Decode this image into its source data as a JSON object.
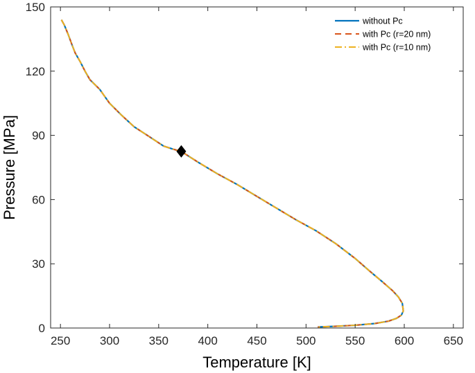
{
  "chart_data": {
    "type": "line",
    "xlabel": "Temperature [K]",
    "ylabel": "Pressure [MPa]",
    "xlim": [
      240,
      660
    ],
    "ylim": [
      0,
      150
    ],
    "xticks": [
      250,
      300,
      350,
      400,
      450,
      500,
      550,
      600,
      650
    ],
    "yticks": [
      0,
      30,
      60,
      90,
      120,
      150
    ],
    "grid": false,
    "legend_position": "top-right",
    "series": [
      {
        "name": "without Pc",
        "color": "#0072BD",
        "style": "solid",
        "x": [
          251,
          254,
          258,
          262,
          265,
          270,
          275,
          280,
          290,
          300,
          312,
          325,
          340,
          355,
          365,
          373,
          390,
          410,
          430,
          450,
          470,
          490,
          510,
          530,
          550,
          565,
          578,
          588,
          594,
          598,
          599,
          597,
          592,
          584,
          570,
          550,
          530,
          512
        ],
        "y": [
          144,
          141.5,
          137,
          132,
          128.5,
          124.5,
          120,
          116,
          111.5,
          105,
          99.5,
          94,
          89.5,
          85,
          83.5,
          82.5,
          77.5,
          72,
          67,
          61.5,
          56,
          50.5,
          45.5,
          39.5,
          32.5,
          26.5,
          21.5,
          17.5,
          14.5,
          11.5,
          8,
          6,
          4.5,
          3.2,
          2.1,
          1.3,
          0.8,
          0.5
        ]
      },
      {
        "name": "with Pc (r=20 nm)",
        "color": "#D95319",
        "style": "dashed",
        "x": [
          251,
          254,
          258,
          262,
          265,
          270,
          275,
          280,
          290,
          300,
          312,
          325,
          340,
          355,
          365,
          373,
          390,
          410,
          430,
          450,
          470,
          490,
          510,
          530,
          550,
          565,
          578,
          588,
          594,
          598,
          599,
          597,
          592,
          584,
          570,
          550,
          530,
          512
        ],
        "y": [
          144,
          141.5,
          137,
          132,
          128.5,
          124.5,
          120,
          116,
          111.5,
          105,
          99.5,
          94,
          89.5,
          85,
          83.5,
          82.5,
          77.5,
          72,
          67,
          61.5,
          56,
          50.5,
          45.5,
          39.5,
          32.5,
          26.5,
          21.5,
          17.5,
          14.5,
          11.5,
          8,
          6,
          4.5,
          3.2,
          2.1,
          1.3,
          0.8,
          0.5
        ]
      },
      {
        "name": "with Pc (r=10 nm)",
        "color": "#EDB120",
        "style": "dashdot",
        "x": [
          251,
          254,
          258,
          262,
          265,
          270,
          275,
          280,
          290,
          300,
          312,
          325,
          340,
          355,
          365,
          373,
          390,
          410,
          430,
          450,
          470,
          490,
          510,
          530,
          550,
          565,
          578,
          588,
          594,
          598,
          599,
          597,
          592,
          584,
          570,
          550,
          530,
          512
        ],
        "y": [
          144,
          141.5,
          137,
          132,
          128.5,
          124.5,
          120,
          116,
          111.5,
          105,
          99.5,
          94,
          89.5,
          85,
          83.5,
          82.5,
          77.5,
          72,
          67,
          61.5,
          56,
          50.5,
          45.5,
          39.5,
          32.5,
          26.5,
          21.5,
          17.5,
          14.5,
          11.5,
          8,
          6,
          4.5,
          3.2,
          2.1,
          1.3,
          0.8,
          0.5
        ]
      }
    ],
    "markers": [
      {
        "shape": "diamond",
        "color": "#000000",
        "x": 373,
        "y": 82.5
      }
    ]
  }
}
